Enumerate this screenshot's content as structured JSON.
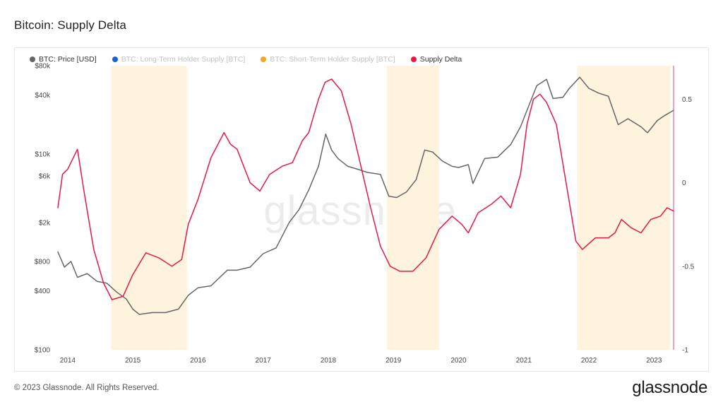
{
  "header": {
    "title": "Bitcoin: Supply Delta"
  },
  "legend": [
    {
      "label": "BTC: Price [USD]",
      "color": "#666666",
      "muted": false
    },
    {
      "label": "BTC: Long-Term Holder Supply [BTC]",
      "color": "#1f5fd6",
      "muted": true
    },
    {
      "label": "BTC: Short-Term Holder Supply [BTC]",
      "color": "#f5a623",
      "muted": true
    },
    {
      "label": "Supply Delta",
      "color": "#e8174a",
      "muted": false
    }
  ],
  "footer": {
    "copyright": "© 2023 Glassnode. All Rights Reserved.",
    "logo": "glassnode"
  },
  "watermark": "glassnode",
  "chart_data": {
    "type": "line",
    "title": "Bitcoin: Supply Delta",
    "x_ticks": [
      "2014",
      "2015",
      "2016",
      "2017",
      "2018",
      "2019",
      "2020",
      "2021",
      "2022",
      "2023"
    ],
    "y_left_scale": "log",
    "y_left_ticks": [
      "$80k",
      "$40k",
      "$10k",
      "$6k",
      "$2k",
      "$800",
      "$400",
      "$100"
    ],
    "y_left_tick_values": [
      80000,
      40000,
      10000,
      6000,
      2000,
      800,
      400,
      100
    ],
    "y_left_range": [
      100,
      80000
    ],
    "y_right_ticks": [
      "0.5",
      "0",
      "-0.5",
      "-1"
    ],
    "y_right_tick_values": [
      0.5,
      0,
      -0.5,
      -1
    ],
    "y_right_range": [
      -1,
      0.7
    ],
    "x_range": [
      2013.85,
      2023.3
    ],
    "highlight_periods": [
      {
        "start": 2014.67,
        "end": 2015.83
      },
      {
        "start": 2018.9,
        "end": 2019.7
      },
      {
        "start": 2021.82,
        "end": 2023.25
      }
    ],
    "series": [
      {
        "name": "BTC: Price [USD]",
        "color": "#666666",
        "axis": "left",
        "x": [
          2013.85,
          2013.95,
          2014.05,
          2014.15,
          2014.3,
          2014.45,
          2014.6,
          2014.75,
          2014.9,
          2015.0,
          2015.1,
          2015.3,
          2015.5,
          2015.7,
          2015.85,
          2016.0,
          2016.2,
          2016.45,
          2016.6,
          2016.8,
          2017.0,
          2017.2,
          2017.4,
          2017.55,
          2017.7,
          2017.85,
          2017.96,
          2018.05,
          2018.15,
          2018.3,
          2018.45,
          2018.6,
          2018.8,
          2018.93,
          2019.05,
          2019.2,
          2019.35,
          2019.48,
          2019.6,
          2019.75,
          2019.9,
          2020.0,
          2020.15,
          2020.22,
          2020.4,
          2020.6,
          2020.8,
          2020.95,
          2021.1,
          2021.2,
          2021.35,
          2021.45,
          2021.6,
          2021.7,
          2021.86,
          2022.0,
          2022.15,
          2022.3,
          2022.45,
          2022.6,
          2022.8,
          2022.9,
          2023.05,
          2023.15,
          2023.3
        ],
        "y": [
          1000,
          700,
          800,
          550,
          600,
          500,
          480,
          390,
          330,
          260,
          230,
          240,
          240,
          260,
          360,
          430,
          450,
          650,
          650,
          700,
          960,
          1100,
          2000,
          2700,
          4300,
          7500,
          16000,
          11000,
          9000,
          7500,
          7000,
          6500,
          6200,
          3700,
          3600,
          4100,
          5500,
          11000,
          10500,
          8500,
          7500,
          7300,
          7800,
          5000,
          9000,
          9300,
          12500,
          19000,
          34000,
          50000,
          58000,
          37000,
          38000,
          47000,
          61000,
          47000,
          42000,
          39000,
          20000,
          23000,
          19000,
          16500,
          22000,
          24500,
          28000
        ]
      },
      {
        "name": "Supply Delta",
        "color": "#e8174a",
        "axis": "right",
        "x": [
          2013.85,
          2013.92,
          2014.0,
          2014.15,
          2014.25,
          2014.4,
          2014.55,
          2014.68,
          2014.85,
          2015.0,
          2015.2,
          2015.4,
          2015.6,
          2015.75,
          2015.85,
          2016.0,
          2016.2,
          2016.4,
          2016.5,
          2016.6,
          2016.8,
          2016.95,
          2017.1,
          2017.3,
          2017.45,
          2017.6,
          2017.7,
          2017.85,
          2017.95,
          2018.05,
          2018.2,
          2018.35,
          2018.5,
          2018.65,
          2018.8,
          2018.95,
          2019.1,
          2019.3,
          2019.5,
          2019.7,
          2019.9,
          2020.05,
          2020.15,
          2020.3,
          2020.5,
          2020.65,
          2020.8,
          2020.95,
          2021.05,
          2021.15,
          2021.25,
          2021.35,
          2021.5,
          2021.65,
          2021.8,
          2021.9,
          2022.1,
          2022.3,
          2022.4,
          2022.5,
          2022.65,
          2022.8,
          2022.95,
          2023.1,
          2023.2,
          2023.3
        ],
        "y": [
          -0.15,
          0.05,
          0.08,
          0.2,
          -0.05,
          -0.4,
          -0.6,
          -0.7,
          -0.68,
          -0.55,
          -0.42,
          -0.45,
          -0.5,
          -0.46,
          -0.25,
          -0.1,
          0.15,
          0.3,
          0.23,
          0.2,
          0.0,
          -0.05,
          0.05,
          0.1,
          0.12,
          0.25,
          0.3,
          0.5,
          0.6,
          0.62,
          0.55,
          0.35,
          0.1,
          -0.15,
          -0.38,
          -0.5,
          -0.53,
          -0.53,
          -0.45,
          -0.28,
          -0.2,
          -0.25,
          -0.3,
          -0.18,
          -0.13,
          -0.08,
          -0.15,
          0.05,
          0.35,
          0.5,
          0.53,
          0.48,
          0.35,
          0.0,
          -0.35,
          -0.4,
          -0.33,
          -0.33,
          -0.3,
          -0.22,
          -0.27,
          -0.3,
          -0.22,
          -0.2,
          -0.15,
          -0.17
        ]
      }
    ]
  }
}
